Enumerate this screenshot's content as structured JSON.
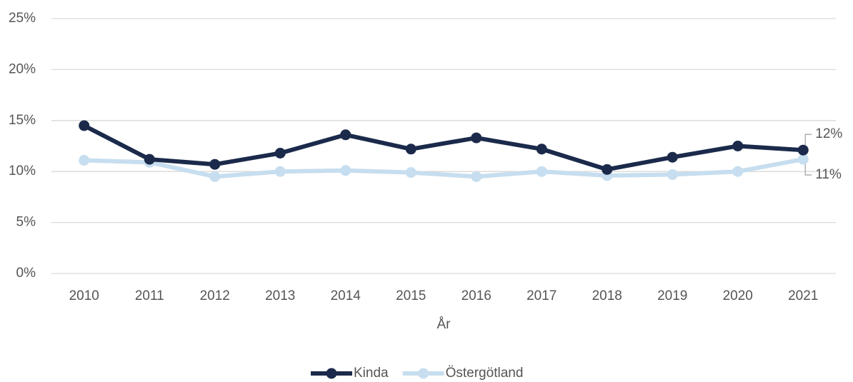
{
  "chart_data": {
    "type": "line",
    "categories": [
      "2010",
      "2011",
      "2012",
      "2013",
      "2014",
      "2015",
      "2016",
      "2017",
      "2018",
      "2019",
      "2020",
      "2021"
    ],
    "xlabel": "År",
    "series": [
      {
        "name": "Kinda",
        "color": "#1b2a4b",
        "values": [
          14.5,
          11.2,
          10.7,
          11.8,
          13.6,
          12.2,
          13.3,
          12.2,
          10.2,
          11.4,
          12.5,
          12.1
        ],
        "value_labels": [
          null,
          null,
          null,
          null,
          null,
          null,
          null,
          null,
          null,
          null,
          null,
          "12%"
        ]
      },
      {
        "name": "Östergötland",
        "color": "#c6deef",
        "values": [
          11.1,
          10.9,
          9.5,
          10.0,
          10.1,
          9.9,
          9.5,
          10.0,
          9.6,
          9.7,
          10.0,
          11.2
        ],
        "value_labels": [
          null,
          null,
          null,
          null,
          null,
          null,
          null,
          null,
          null,
          null,
          null,
          "11%"
        ]
      }
    ],
    "ylim": [
      0,
      25
    ],
    "yticks": [
      {
        "value": 0,
        "label": "0%"
      },
      {
        "value": 5,
        "label": "5%"
      },
      {
        "value": 10,
        "label": "10%"
      },
      {
        "value": 15,
        "label": "15%"
      },
      {
        "value": 20,
        "label": "20%"
      },
      {
        "value": 25,
        "label": "25%"
      }
    ],
    "grid": true,
    "legend": "bottom"
  }
}
